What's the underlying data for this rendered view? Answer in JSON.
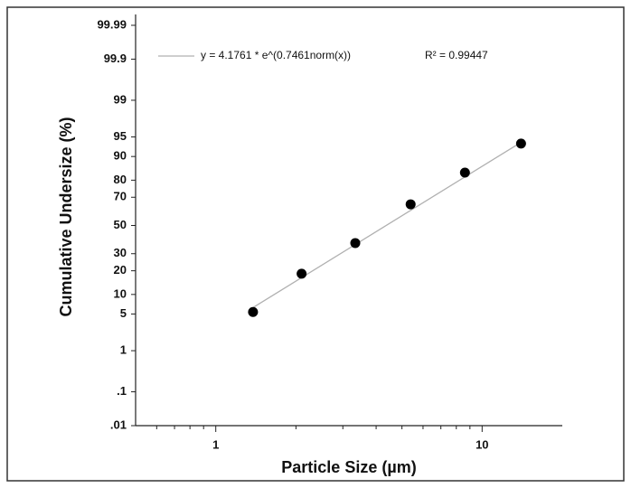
{
  "chart_data": {
    "type": "scatter",
    "y_scale": "probability",
    "x_scale": "log",
    "xlabel": "Particle Size (µm)",
    "ylabel": "Cumulative Undersize (%)",
    "xlim": [
      0.5,
      20
    ],
    "xticks": [
      1,
      10
    ],
    "xminorticks": [
      0.6,
      0.7,
      0.8,
      0.9,
      2,
      3,
      4,
      5,
      6,
      7,
      8,
      9
    ],
    "ylim": [
      0.01,
      99.99
    ],
    "yticks": [
      {
        "value": 0.01,
        "label": ".01"
      },
      {
        "value": 0.1,
        "label": ".1"
      },
      1,
      5,
      10,
      20,
      30,
      50,
      70,
      80,
      90,
      95,
      99,
      99.9,
      99.99
    ],
    "series": [
      {
        "name": "y = 4.1761 * e^(0.7461norm(x))",
        "color": "#b0b0b0",
        "style": "line",
        "x": [
          1.35,
          14.1
        ],
        "values": [
          6.0,
          94.0
        ]
      },
      {
        "color": "#000000",
        "style": "marker",
        "x": [
          1.38,
          2.1,
          3.34,
          5.39,
          8.62,
          14.0
        ],
        "values": [
          5.4,
          18.5,
          37.2,
          65.3,
          83.7,
          93.6
        ]
      }
    ],
    "annotations": [
      "R² = 0.99447"
    ]
  }
}
